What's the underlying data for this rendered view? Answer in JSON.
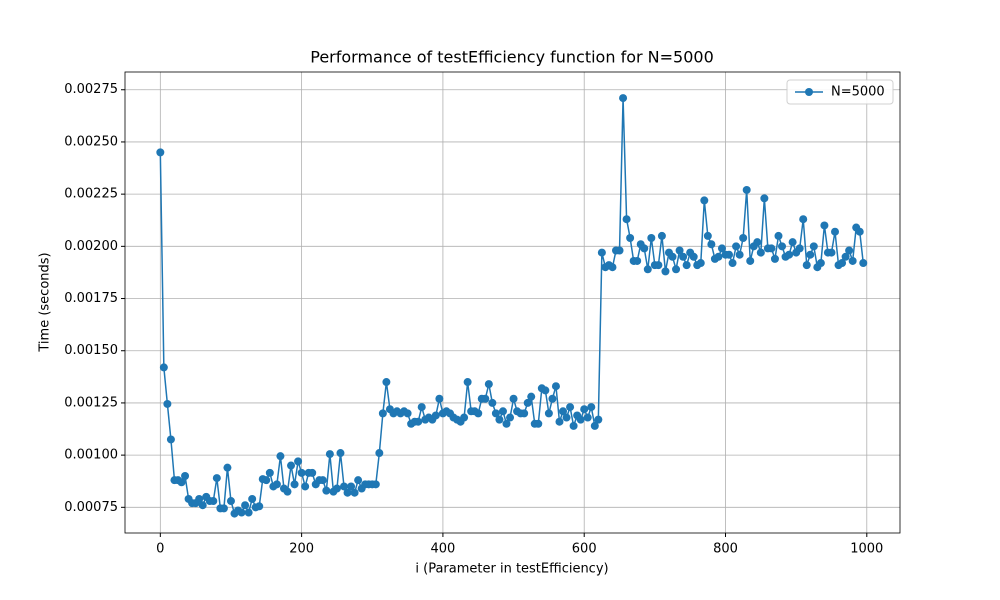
{
  "chart_data": {
    "type": "line",
    "title": "Performance of testEfficiency function for N=5000",
    "xlabel": "i (Parameter in testEfficiency)",
    "ylabel": "Time (seconds)",
    "x": [
      0,
      5,
      10,
      15,
      20,
      25,
      30,
      35,
      40,
      45,
      50,
      55,
      60,
      65,
      70,
      75,
      80,
      85,
      90,
      95,
      100,
      105,
      110,
      115,
      120,
      125,
      130,
      135,
      140,
      145,
      150,
      155,
      160,
      165,
      170,
      175,
      180,
      185,
      190,
      195,
      200,
      205,
      210,
      215,
      220,
      225,
      230,
      235,
      240,
      245,
      250,
      255,
      260,
      265,
      270,
      275,
      280,
      285,
      290,
      295,
      300,
      305,
      310,
      315,
      320,
      325,
      330,
      335,
      340,
      345,
      350,
      355,
      360,
      365,
      370,
      375,
      380,
      385,
      390,
      395,
      400,
      405,
      410,
      415,
      420,
      425,
      430,
      435,
      440,
      445,
      450,
      455,
      460,
      465,
      470,
      475,
      480,
      485,
      490,
      495,
      500,
      505,
      510,
      515,
      520,
      525,
      530,
      535,
      540,
      545,
      550,
      555,
      560,
      565,
      570,
      575,
      580,
      585,
      590,
      595,
      600,
      605,
      610,
      615,
      620,
      625,
      630,
      635,
      640,
      645,
      650,
      655,
      660,
      665,
      670,
      675,
      680,
      685,
      690,
      695,
      700,
      705,
      710,
      715,
      720,
      725,
      730,
      735,
      740,
      745,
      750,
      755,
      760,
      765,
      770,
      775,
      780,
      785,
      790,
      795,
      800,
      805,
      810,
      815,
      820,
      825,
      830,
      835,
      840,
      845,
      850,
      855,
      860,
      865,
      870,
      875,
      880,
      885,
      890,
      895,
      900,
      905,
      910,
      915,
      920,
      925,
      930,
      935,
      940,
      945,
      950,
      955,
      960,
      965,
      970,
      975,
      980,
      985,
      990,
      995
    ],
    "series": [
      {
        "name": "N=5000",
        "color": "#1f77b4",
        "values": [
          0.00245,
          0.00142,
          0.001245,
          0.001075,
          0.00088,
          0.00088,
          0.00087,
          0.0009,
          0.00079,
          0.00077,
          0.00077,
          0.00079,
          0.00076,
          0.0008,
          0.00078,
          0.00078,
          0.00089,
          0.000745,
          0.000745,
          0.00094,
          0.00078,
          0.00072,
          0.000735,
          0.000725,
          0.00076,
          0.000725,
          0.00079,
          0.00075,
          0.000755,
          0.000885,
          0.00088,
          0.000915,
          0.00085,
          0.00086,
          0.000995,
          0.00084,
          0.000825,
          0.00095,
          0.00086,
          0.00097,
          0.000915,
          0.00085,
          0.000915,
          0.000915,
          0.00086,
          0.00088,
          0.00088,
          0.00083,
          0.001005,
          0.000825,
          0.00084,
          0.00101,
          0.00085,
          0.00082,
          0.00085,
          0.00082,
          0.00088,
          0.00084,
          0.00086,
          0.00086,
          0.00086,
          0.00086,
          0.00101,
          0.0012,
          0.00135,
          0.00122,
          0.0012,
          0.00121,
          0.0012,
          0.00121,
          0.0012,
          0.00115,
          0.00116,
          0.00116,
          0.00123,
          0.00117,
          0.00118,
          0.00117,
          0.00119,
          0.00127,
          0.0012,
          0.00121,
          0.0012,
          0.00118,
          0.00117,
          0.00116,
          0.00118,
          0.00135,
          0.00121,
          0.00121,
          0.0012,
          0.00127,
          0.00127,
          0.00134,
          0.00125,
          0.0012,
          0.00117,
          0.00121,
          0.00115,
          0.00118,
          0.00127,
          0.00121,
          0.0012,
          0.0012,
          0.00125,
          0.00128,
          0.00115,
          0.00115,
          0.00132,
          0.00131,
          0.0012,
          0.00127,
          0.00133,
          0.00116,
          0.00121,
          0.00118,
          0.00123,
          0.00114,
          0.00119,
          0.00117,
          0.00122,
          0.00118,
          0.00123,
          0.00114,
          0.00117,
          0.00197,
          0.0019,
          0.00191,
          0.0019,
          0.00198,
          0.00198,
          0.00271,
          0.00213,
          0.00204,
          0.00193,
          0.00193,
          0.00201,
          0.00199,
          0.00189,
          0.00204,
          0.00191,
          0.00191,
          0.00205,
          0.00188,
          0.00197,
          0.00195,
          0.00189,
          0.00198,
          0.00195,
          0.00191,
          0.00197,
          0.00195,
          0.00191,
          0.00192,
          0.00222,
          0.00205,
          0.00201,
          0.00194,
          0.00195,
          0.00199,
          0.00196,
          0.00196,
          0.00192,
          0.002,
          0.00196,
          0.00204,
          0.00227,
          0.00193,
          0.002,
          0.00202,
          0.00197,
          0.00223,
          0.00199,
          0.00199,
          0.00194,
          0.00205,
          0.002,
          0.00195,
          0.00196,
          0.00202,
          0.00197,
          0.00199,
          0.00213,
          0.00191,
          0.00196,
          0.002,
          0.0019,
          0.00192,
          0.0021,
          0.00197,
          0.00197,
          0.00207,
          0.00191,
          0.00192,
          0.00195,
          0.00198,
          0.00193,
          0.00209,
          0.00207,
          0.00192
        ]
      }
    ],
    "xlim": [
      -50,
      1047
    ],
    "ylim": [
      0.000627,
      0.002835
    ],
    "xticks": [
      0,
      200,
      400,
      600,
      800,
      1000
    ],
    "yticks": [
      0.00075,
      {
        "value": 0.001,
        "label": "0.00100"
      },
      0.00125,
      {
        "value": 0.0015,
        "label": "0.00150"
      },
      0.00175,
      {
        "value": 0.002,
        "label": "0.00200"
      },
      0.00225,
      {
        "value": 0.0025,
        "label": "0.00250"
      },
      0.00275
    ],
    "grid": true,
    "legend": "upper right"
  }
}
